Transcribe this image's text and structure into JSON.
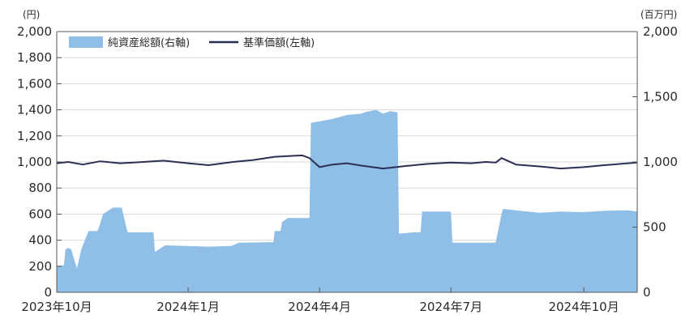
{
  "chart_data": {
    "type": "area",
    "left_unit": "(円)",
    "right_unit": "(百万円)",
    "left_ticks": [
      "0",
      "200",
      "400",
      "600",
      "800",
      "1,000",
      "1,200",
      "1,400",
      "1,600",
      "1,800",
      "2,000"
    ],
    "right_ticks": [
      "0",
      "500",
      "1,000",
      "1,500",
      "2,000"
    ],
    "x_ticks": [
      "2023年10月",
      "2024年1月",
      "2024年4月",
      "2024年7月",
      "2024年10月"
    ],
    "left_ylim": [
      0,
      2000
    ],
    "right_ylim": [
      0,
      2000
    ],
    "legend_position": "top-left",
    "series": [
      {
        "name": "純資産総額(右軸)",
        "kind": "area",
        "axis": "right",
        "color": "#8fbee6",
        "x": [
          "2023-10-02",
          "2023-10-07",
          "2023-10-08",
          "2023-10-10",
          "2023-10-12",
          "2023-10-16",
          "2023-10-19",
          "2023-10-24",
          "2023-10-30",
          "2023-10-31",
          "2023-11-03",
          "2023-11-10",
          "2023-11-16",
          "2023-11-20",
          "2023-11-24",
          "2023-12-08",
          "2023-12-09",
          "2023-12-16",
          "2023-12-31",
          "2024-01-15",
          "2024-01-31",
          "2024-02-05",
          "2024-02-29",
          "2024-03-01",
          "2024-03-05",
          "2024-03-06",
          "2024-03-10",
          "2024-03-20",
          "2024-03-25",
          "2024-03-26",
          "2024-04-10",
          "2024-04-20",
          "2024-04-30",
          "2024-05-02",
          "2024-05-10",
          "2024-05-15",
          "2024-05-20",
          "2024-05-25",
          "2024-05-26",
          "2024-06-05",
          "2024-06-10",
          "2024-06-11",
          "2024-06-30",
          "2024-07-01",
          "2024-07-02",
          "2024-07-15",
          "2024-07-31",
          "2024-08-01",
          "2024-08-05",
          "2024-08-06",
          "2024-08-31",
          "2024-09-15",
          "2024-09-30",
          "2024-10-15",
          "2024-10-31",
          "2024-11-07"
        ],
        "values": [
          200,
          210,
          330,
          340,
          330,
          180,
          330,
          470,
          470,
          490,
          600,
          650,
          650,
          460,
          460,
          460,
          310,
          360,
          355,
          350,
          355,
          380,
          385,
          470,
          470,
          540,
          570,
          570,
          570,
          1300,
          1330,
          1360,
          1370,
          1380,
          1400,
          1370,
          1390,
          1380,
          450,
          460,
          460,
          620,
          620,
          615,
          380,
          380,
          380,
          385,
          600,
          640,
          610,
          620,
          615,
          625,
          630,
          620
        ]
      },
      {
        "name": "基準価額(左軸)",
        "kind": "line",
        "axis": "left",
        "color": "#2c2f55",
        "x": [
          "2023-10-02",
          "2023-10-10",
          "2023-10-20",
          "2023-11-01",
          "2023-11-15",
          "2023-12-01",
          "2023-12-15",
          "2024-01-01",
          "2024-01-15",
          "2024-02-01",
          "2024-02-15",
          "2024-03-01",
          "2024-03-10",
          "2024-03-20",
          "2024-03-25",
          "2024-04-01",
          "2024-04-10",
          "2024-04-20",
          "2024-05-01",
          "2024-05-15",
          "2024-06-01",
          "2024-06-15",
          "2024-07-01",
          "2024-07-15",
          "2024-07-25",
          "2024-08-01",
          "2024-08-05",
          "2024-08-15",
          "2024-09-01",
          "2024-09-15",
          "2024-10-01",
          "2024-10-15",
          "2024-11-07"
        ],
        "values": [
          990,
          1000,
          980,
          1005,
          990,
          1000,
          1010,
          990,
          975,
          1000,
          1015,
          1040,
          1045,
          1050,
          1030,
          960,
          980,
          990,
          970,
          950,
          970,
          985,
          995,
          990,
          1000,
          995,
          1030,
          980,
          965,
          950,
          960,
          975,
          995
        ]
      }
    ]
  }
}
